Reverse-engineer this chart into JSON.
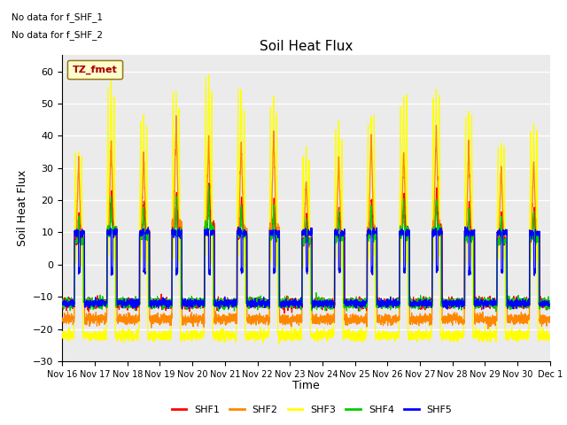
{
  "title": "Soil Heat Flux",
  "ylabel": "Soil Heat Flux",
  "xlabel": "Time",
  "ylim": [
    -30,
    65
  ],
  "yticks": [
    -30,
    -20,
    -10,
    0,
    10,
    20,
    30,
    40,
    50,
    60
  ],
  "note_line1": "No data for f_SHF_1",
  "note_line2": "No data for f_SHF_2",
  "legend_label": "TZ_fmet",
  "legend_entries": [
    "SHF1",
    "SHF2",
    "SHF3",
    "SHF4",
    "SHF5"
  ],
  "line_colors": [
    "#ff0000",
    "#ff8800",
    "#ffff00",
    "#00cc00",
    "#0000ff"
  ],
  "plot_bg": "#ebebeb",
  "num_days": 15,
  "x_labels": [
    "Nov 16",
    "Nov 17",
    "Nov 18",
    "Nov 19",
    "Nov 20",
    "Nov 21",
    "Nov 22",
    "Nov 23",
    "Nov 24",
    "Nov 25",
    "Nov 26",
    "Nov 27",
    "Nov 28",
    "Nov 29",
    "Nov 30",
    "Dec 1"
  ]
}
